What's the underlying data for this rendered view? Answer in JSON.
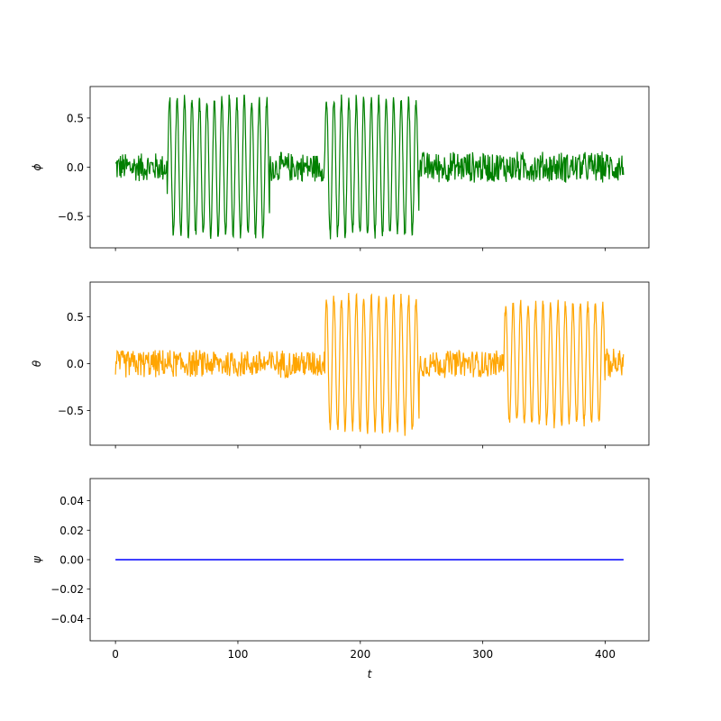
{
  "chart_data": [
    {
      "type": "line",
      "ylabel": "ϕ",
      "xlim": [
        -20.7,
        435.7
      ],
      "ylim": [
        -0.82,
        0.82
      ],
      "yticks": [
        0.5,
        0.0,
        -0.5
      ],
      "yticklabels": [
        "0.5",
        "0.0",
        "−0.5"
      ],
      "xticklabels_visible": false,
      "color": "#008000",
      "series": [
        {
          "t_range": [
            0,
            415
          ],
          "segments": [
            {
              "t": [
                0,
                42
              ],
              "amplitude": 0.16
            },
            {
              "t": [
                42,
                126
              ],
              "amplitude": 0.7
            },
            {
              "t": [
                126,
                171
              ],
              "amplitude": 0.16
            },
            {
              "t": [
                171,
                248
              ],
              "amplitude": 0.7
            },
            {
              "t": [
                248,
                415
              ],
              "amplitude": 0.17
            }
          ]
        }
      ]
    },
    {
      "type": "line",
      "ylabel": "θ",
      "xlim": [
        -20.7,
        435.7
      ],
      "ylim": [
        -0.87,
        0.87
      ],
      "yticks": [
        0.5,
        0.0,
        -0.5
      ],
      "yticklabels": [
        "0.5",
        "0.0",
        "−0.5"
      ],
      "xticklabels_visible": false,
      "color": "#ffa500",
      "series": [
        {
          "t_range": [
            0,
            415
          ],
          "segments": [
            {
              "t": [
                0,
                171
              ],
              "amplitude": 0.16
            },
            {
              "t": [
                171,
                248
              ],
              "amplitude": 0.72
            },
            {
              "t": [
                248,
                317
              ],
              "amplitude": 0.16
            },
            {
              "t": [
                317,
                400
              ],
              "amplitude": 0.65
            },
            {
              "t": [
                400,
                415
              ],
              "amplitude": 0.17
            }
          ]
        }
      ]
    },
    {
      "type": "line",
      "ylabel": "ψ",
      "xlabel": "t",
      "xlim": [
        -20.7,
        435.7
      ],
      "ylim": [
        -0.055,
        0.055
      ],
      "xticks": [
        0,
        100,
        200,
        300,
        400
      ],
      "xticklabels": [
        "0",
        "100",
        "200",
        "300",
        "400"
      ],
      "yticks": [
        0.04,
        0.02,
        0.0,
        -0.02,
        -0.04
      ],
      "yticklabels": [
        "0.04",
        "0.02",
        "0.00",
        "−0.02",
        "−0.04"
      ],
      "color": "#0000ff",
      "series": [
        {
          "x": [
            0,
            415
          ],
          "y": [
            0,
            0
          ]
        }
      ]
    }
  ]
}
